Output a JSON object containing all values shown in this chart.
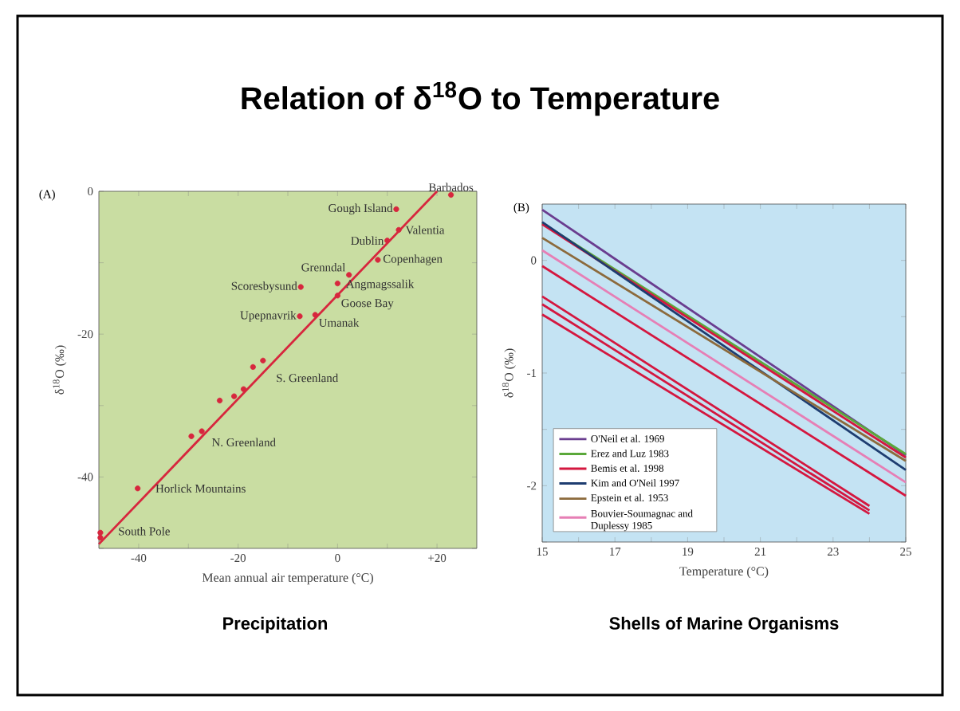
{
  "chart_data": [
    {
      "type": "scatter",
      "title": "Relation of δ$^{18}$O to Temperature",
      "subtitle": "Precipitation",
      "xlabel": "Mean annual air temperature (°C)",
      "ylabel": "δ$^{18}$O (‰)",
      "xlim": [
        -48,
        28
      ],
      "ylim": [
        -50,
        0
      ],
      "xticks": [
        -40,
        {
          "value": -30,
          "label": null
        },
        -20,
        {
          "value": -10,
          "label": null
        },
        0,
        {
          "value": 10,
          "label": null
        },
        {
          "value": 20,
          "label": "+20"
        }
      ],
      "yticks": [
        {
          "value": -50,
          "label": null
        },
        -40,
        {
          "value": -30,
          "label": null
        },
        -20,
        {
          "value": -10,
          "label": null
        },
        0
      ],
      "marker": "circle",
      "series": [
        {
          "type": "scatter",
          "color": "#d7263d",
          "x": [
            22.8,
            11.8,
            12.3,
            10,
            8.1,
            2.3,
            0,
            0,
            -7.4,
            -7.6,
            -4.5,
            -15,
            -17,
            -18.9,
            -20.8,
            -23.7,
            -27.3,
            -29.4,
            -40.2,
            -47.7,
            -47.7
          ],
          "values": [
            -0.5,
            -2.5,
            -5.4,
            -6.9,
            -9.6,
            -11.7,
            -12.9,
            -14.6,
            -13.4,
            -17.5,
            -17.3,
            -23.7,
            -24.6,
            -27.7,
            -28.7,
            -29.3,
            -33.6,
            -34.3,
            -41.6,
            -47.8,
            -48.5
          ]
        },
        {
          "type": "line",
          "color": "#d7263d",
          "marker": "none",
          "x": [
            -48,
            20
          ],
          "values": [
            -49.4,
            0
          ]
        }
      ],
      "annotations": [
        "(A)",
        {
          "text": "Gough Island",
          "x": 11.8,
          "y": -2.5
        },
        {
          "text": "Barbados",
          "x": 22.8,
          "y": -0.5
        },
        {
          "text": "Valentia",
          "x": 12.3,
          "y": -5.4
        },
        {
          "text": "Dublin",
          "x": 10,
          "y": -6.9
        },
        {
          "text": "Copenhagen",
          "x": 8.1,
          "y": -9.6
        },
        {
          "text": "Grenndal",
          "x": 2.3,
          "y": -11.7
        },
        {
          "text": "Angmagssalik",
          "x": 0,
          "y": -12.9
        },
        {
          "text": "Goose Bay",
          "x": 0,
          "y": -14.6
        },
        {
          "text": "Scoresbysund",
          "x": -7.4,
          "y": -13.4
        },
        {
          "text": "Upepnavrik",
          "x": -7.6,
          "y": -17.5
        },
        {
          "text": "Umanak",
          "x": -4.5,
          "y": -17.3
        },
        {
          "text": "S. Greenland",
          "x": -15,
          "y": -23.7
        },
        {
          "text": "N. Greenland",
          "x": -27.3,
          "y": -33.6
        },
        {
          "text": "Horlick Mountains",
          "x": -40.2,
          "y": -41.6
        },
        {
          "text": "South Pole",
          "x": -47.7,
          "y": -47.8
        }
      ]
    },
    {
      "type": "line",
      "title": "Shells of Marine Organisms",
      "xlabel": "Temperature (°C)",
      "ylabel": "δ$^{18}$O (‰)",
      "xlim": [
        15,
        25
      ],
      "ylim": [
        -2.5,
        0.5
      ],
      "xticks": [
        15,
        {
          "value": 16,
          "label": null
        },
        17,
        {
          "value": 18,
          "label": null
        },
        19,
        {
          "value": 20,
          "label": null
        },
        21,
        {
          "value": 22,
          "label": null
        },
        23,
        {
          "value": 24,
          "label": null
        },
        25
      ],
      "yticks": [
        {
          "value": -2.5,
          "label": null
        },
        -2,
        {
          "value": -1.5,
          "label": null
        },
        -1,
        {
          "value": -0.5,
          "label": null
        },
        0
      ],
      "legend": "bottom left",
      "series": [
        {
          "name": "O'Neil et al. 1969",
          "color": "#6a3d8f",
          "x": [
            15,
            25
          ],
          "values": [
            0.45,
            -1.73
          ]
        },
        {
          "name": "Erez and Luz 1983",
          "color": "#5aa83a",
          "x": [
            15,
            25
          ],
          "values": [
            0.33,
            -1.72
          ]
        },
        {
          "name": "Bemis et al. 1998",
          "color": "#d4173f",
          "x": [
            15,
            25
          ],
          "values": [
            0.32,
            -1.75
          ]
        },
        {
          "name": "Kim and O'Neil 1997",
          "color": "#1e3d70",
          "x": [
            15,
            25
          ],
          "values": [
            0.34,
            -1.86
          ]
        },
        {
          "name": "Epstein et al. 1953",
          "color": "#8c6a3c",
          "x": [
            15,
            25
          ],
          "values": [
            0.2,
            -1.78
          ]
        },
        {
          "name": "Bouvier-Soumagnac and Duplessy 1985",
          "color": "#e67fb5",
          "x": [
            15,
            25
          ],
          "values": [
            0.09,
            -1.97
          ]
        },
        {
          "color": "#d4173f",
          "x": [
            15,
            25
          ],
          "values": [
            -0.05,
            -2.09
          ]
        },
        {
          "color": "#d4173f",
          "x": [
            15,
            24
          ],
          "values": [
            -0.32,
            -2.18
          ]
        },
        {
          "color": "#d4173f",
          "x": [
            15,
            24
          ],
          "values": [
            -0.39,
            -2.22
          ]
        },
        {
          "color": "#d4173f",
          "x": [
            15,
            24
          ],
          "values": [
            -0.48,
            -2.25
          ]
        }
      ],
      "annotations": [
        "(B)"
      ]
    }
  ]
}
